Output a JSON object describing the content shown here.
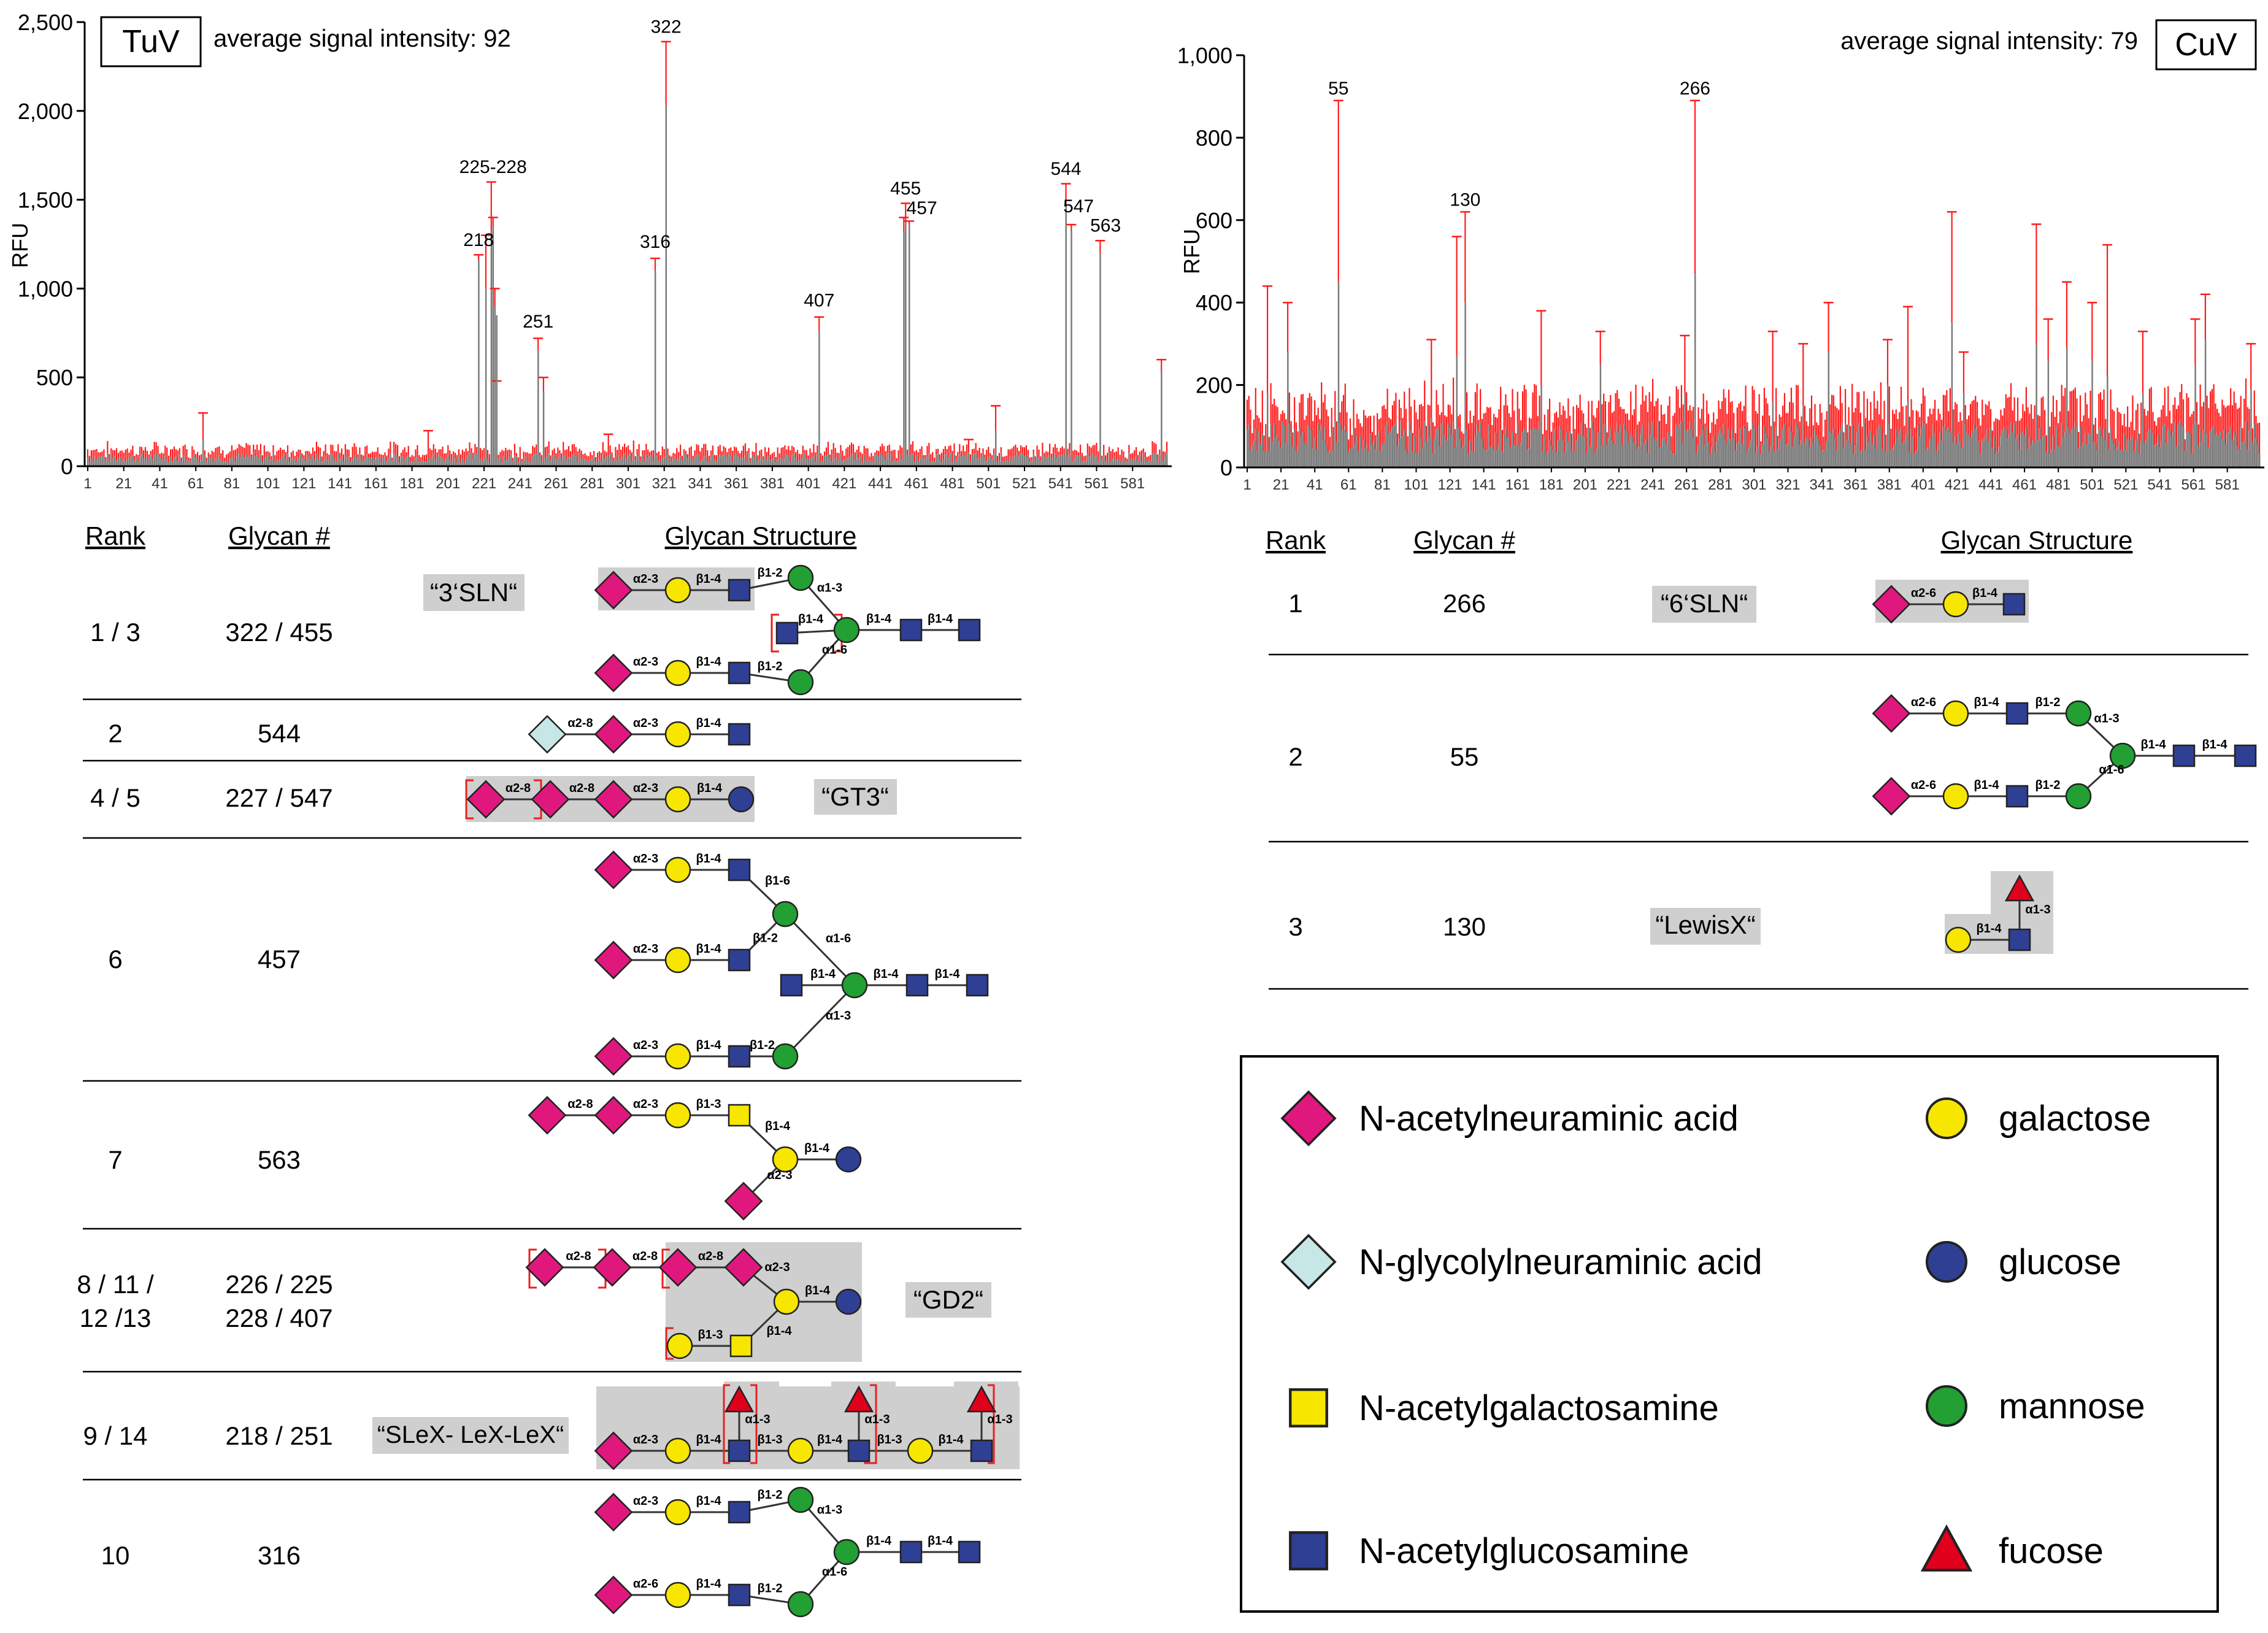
{
  "colors": {
    "neu5ac": "#e0187e",
    "neu5gc": "#c7e6e6",
    "galnac": "#f7e700",
    "glcnac": "#2f3f93",
    "gal": "#f7e700",
    "glc": "#2f3f93",
    "man": "#22a033",
    "fuc": "#e0001b",
    "bar": "#7a7a7a",
    "err": "#ff1a1a",
    "hl": "#cfcfcf"
  },
  "chart_data": [
    {
      "type": "bar",
      "panel_label": "TuV",
      "avg_text": "average signal intensity: 92",
      "ylabel": "RFU",
      "ylim": [
        0,
        2500
      ],
      "yticks": [
        0,
        500,
        1000,
        1500,
        2000,
        2500
      ],
      "ytick_labels": [
        "0",
        "500",
        "1,000",
        "1,500",
        "2,000",
        "2,500"
      ],
      "xtick_labels": [
        "1",
        "21",
        "41",
        "61",
        "81",
        "101",
        "121",
        "141",
        "161",
        "181",
        "201",
        "221",
        "241",
        "261",
        "281",
        "301",
        "321",
        "341",
        "361",
        "381",
        "401",
        "421",
        "441",
        "461",
        "481",
        "501",
        "521",
        "541",
        "561",
        "581"
      ],
      "baseline": 60,
      "peaks": [
        {
          "x": 65,
          "v": 150,
          "e": 300
        },
        {
          "x": 218,
          "v": 1160,
          "e": 1190
        },
        {
          "x": 222,
          "v": 1000,
          "e": 1300
        },
        {
          "x": 225,
          "v": 1320,
          "e": 1600
        },
        {
          "x": 226,
          "v": 1350,
          "e": 1400
        },
        {
          "x": 227,
          "v": 900,
          "e": 1000
        },
        {
          "x": 228,
          "v": 850,
          "e": 480
        },
        {
          "x": 251,
          "v": 650,
          "e": 720
        },
        {
          "x": 254,
          "v": 420,
          "e": 500
        },
        {
          "x": 316,
          "v": 1100,
          "e": 1170
        },
        {
          "x": 322,
          "v": 2030,
          "e": 2390
        },
        {
          "x": 407,
          "v": 760,
          "e": 840
        },
        {
          "x": 454,
          "v": 1320,
          "e": 1400
        },
        {
          "x": 455,
          "v": 1390,
          "e": 1480
        },
        {
          "x": 457,
          "v": 1360,
          "e": 1380
        },
        {
          "x": 544,
          "v": 1480,
          "e": 1590
        },
        {
          "x": 547,
          "v": 1320,
          "e": 1360
        },
        {
          "x": 563,
          "v": 1200,
          "e": 1270
        },
        {
          "x": 597,
          "v": 530,
          "e": 600
        },
        {
          "x": 190,
          "v": 50,
          "e": 200
        },
        {
          "x": 290,
          "v": 60,
          "e": 180
        },
        {
          "x": 505,
          "v": 200,
          "e": 340
        },
        {
          "x": 490,
          "v": 80,
          "e": 150
        }
      ],
      "peak_labels": [
        {
          "x": 218,
          "y": 1240,
          "text": "218"
        },
        {
          "x": 226,
          "y": 1650,
          "text": "225-228"
        },
        {
          "x": 251,
          "y": 780,
          "text": "251"
        },
        {
          "x": 316,
          "y": 1230,
          "text": "316"
        },
        {
          "x": 322,
          "y": 2440,
          "text": "322"
        },
        {
          "x": 407,
          "y": 900,
          "text": "407"
        },
        {
          "x": 455,
          "y": 1530,
          "text": "455"
        },
        {
          "x": 464,
          "y": 1420,
          "text": "457"
        },
        {
          "x": 544,
          "y": 1640,
          "text": "544"
        },
        {
          "x": 551,
          "y": 1430,
          "text": "547"
        },
        {
          "x": 566,
          "y": 1320,
          "text": "563"
        }
      ]
    },
    {
      "type": "bar",
      "panel_label": "CuV",
      "avg_text": "average signal intensity: 79",
      "ylabel": "RFU",
      "ylim": [
        0,
        1000
      ],
      "yticks": [
        0,
        200,
        400,
        600,
        800,
        1000
      ],
      "ytick_labels": [
        "0",
        "200",
        "400",
        "600",
        "800",
        "1,000"
      ],
      "xtick_labels": [
        "1",
        "21",
        "41",
        "61",
        "81",
        "101",
        "121",
        "141",
        "161",
        "181",
        "201",
        "221",
        "241",
        "261",
        "281",
        "301",
        "321",
        "341",
        "361",
        "381",
        "401",
        "421",
        "441",
        "461",
        "481",
        "501",
        "521",
        "541",
        "561",
        "581"
      ],
      "baseline": 90,
      "peaks": [
        {
          "x": 13,
          "v": 180,
          "e": 440
        },
        {
          "x": 25,
          "v": 280,
          "e": 400
        },
        {
          "x": 55,
          "v": 450,
          "e": 890
        },
        {
          "x": 110,
          "v": 120,
          "e": 310
        },
        {
          "x": 125,
          "v": 270,
          "e": 560
        },
        {
          "x": 130,
          "v": 400,
          "e": 620
        },
        {
          "x": 175,
          "v": 200,
          "e": 380
        },
        {
          "x": 210,
          "v": 250,
          "e": 330
        },
        {
          "x": 266,
          "v": 470,
          "e": 890
        },
        {
          "x": 260,
          "v": 180,
          "e": 320
        },
        {
          "x": 312,
          "v": 160,
          "e": 330
        },
        {
          "x": 330,
          "v": 150,
          "e": 300
        },
        {
          "x": 345,
          "v": 280,
          "e": 400
        },
        {
          "x": 380,
          "v": 200,
          "e": 310
        },
        {
          "x": 392,
          "v": 160,
          "e": 390
        },
        {
          "x": 418,
          "v": 350,
          "e": 620
        },
        {
          "x": 425,
          "v": 180,
          "e": 280
        },
        {
          "x": 468,
          "v": 300,
          "e": 590
        },
        {
          "x": 475,
          "v": 260,
          "e": 360
        },
        {
          "x": 486,
          "v": 290,
          "e": 450
        },
        {
          "x": 501,
          "v": 260,
          "e": 400
        },
        {
          "x": 510,
          "v": 220,
          "e": 540
        },
        {
          "x": 531,
          "v": 180,
          "e": 330
        },
        {
          "x": 562,
          "v": 250,
          "e": 360
        },
        {
          "x": 568,
          "v": 310,
          "e": 420
        },
        {
          "x": 595,
          "v": 190,
          "e": 300
        }
      ],
      "peak_labels": [
        {
          "x": 55,
          "y": 905,
          "text": "55"
        },
        {
          "x": 130,
          "y": 635,
          "text": "130"
        },
        {
          "x": 266,
          "y": 905,
          "text": "266"
        }
      ]
    }
  ],
  "left_table": {
    "headers": {
      "rank": "Rank",
      "glycan": "Glycan #",
      "structure": "Glycan Structure"
    },
    "rows": [
      {
        "rank": "1 / 3",
        "glycan": "322 / 455",
        "tag": "“3‘SLN“"
      },
      {
        "rank": "2",
        "glycan": "544"
      },
      {
        "rank": "4 / 5",
        "glycan": "227 / 547",
        "tag": "“GT3“"
      },
      {
        "rank": "6",
        "glycan": "457"
      },
      {
        "rank": "7",
        "glycan": "563"
      },
      {
        "rank1": "8 / 11 /",
        "rank2": "12 /13",
        "glycan1": "226 / 225",
        "glycan2": "228 / 407",
        "tag": "“GD2“"
      },
      {
        "rank": "9 / 14",
        "glycan": "218 / 251",
        "tag": "“SLeX- LeX-LeX“"
      },
      {
        "rank": "10",
        "glycan": "316"
      }
    ]
  },
  "right_table": {
    "headers": {
      "rank": "Rank",
      "glycan": "Glycan #",
      "structure": "Glycan Structure"
    },
    "rows": [
      {
        "rank": "1",
        "glycan": "266",
        "tag": "“6‘SLN“"
      },
      {
        "rank": "2",
        "glycan": "55"
      },
      {
        "rank": "3",
        "glycan": "130",
        "tag": "“LewisX“"
      }
    ]
  },
  "linkages": {
    "a23": "α2-3",
    "a26": "α2-6",
    "a28": "α2-8",
    "b14": "β1-4",
    "b12": "β1-2",
    "b13": "β1-3",
    "b16": "β1-6",
    "a13": "α1-3",
    "a16": "α1-6"
  },
  "legend": [
    {
      "label": "N-acetylneuraminic acid"
    },
    {
      "label": "galactose"
    },
    {
      "label": "N-glycolylneuraminic acid"
    },
    {
      "label": "glucose"
    },
    {
      "label": "N-acetylgalactosamine"
    },
    {
      "label": "mannose"
    },
    {
      "label": "N-acetylglucosamine"
    },
    {
      "label": "fucose"
    }
  ]
}
